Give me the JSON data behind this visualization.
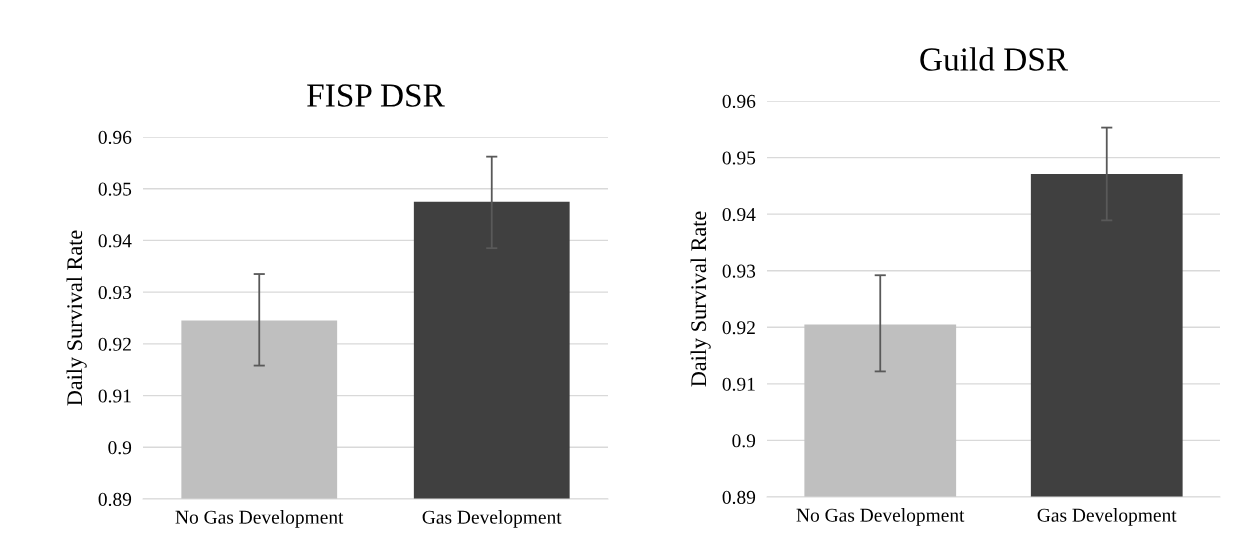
{
  "chart_data": [
    {
      "type": "bar",
      "title": "FISP DSR",
      "ylabel": "Daily Survival Rate",
      "categories": [
        "No Gas Development",
        "Gas Development"
      ],
      "values": [
        0.9245,
        0.9475
      ],
      "colors": [
        "#bfbfbf",
        "#404040"
      ],
      "errors": [
        [
          0.9158,
          0.9335
        ],
        [
          0.9385,
          0.9562
        ]
      ],
      "ylim": [
        0.89,
        0.96
      ],
      "yticks": [
        0.89,
        0.9,
        0.91,
        0.92,
        0.93,
        0.94,
        0.95,
        0.96
      ],
      "grid": "y"
    },
    {
      "type": "bar",
      "title": "Guild DSR",
      "ylabel": "Daily Survival Rate",
      "categories": [
        "No Gas Development",
        "Gas Development"
      ],
      "values": [
        0.9205,
        0.9471
      ],
      "colors": [
        "#bfbfbf",
        "#404040"
      ],
      "errors": [
        [
          0.9122,
          0.9292
        ],
        [
          0.9389,
          0.9553
        ]
      ],
      "ylim": [
        0.89,
        0.96
      ],
      "yticks": [
        0.89,
        0.9,
        0.91,
        0.92,
        0.93,
        0.94,
        0.95,
        0.96
      ],
      "grid": "y"
    }
  ]
}
